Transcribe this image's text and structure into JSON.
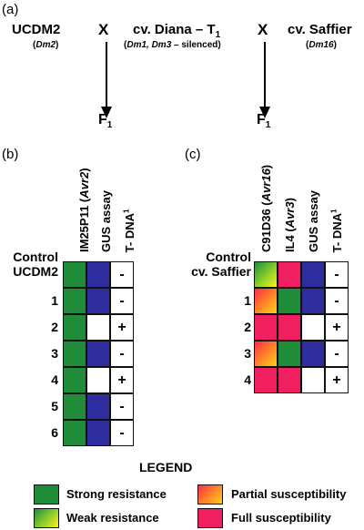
{
  "panel_a": {
    "label": "(a)",
    "parent1": {
      "name": "UCDM2",
      "sub": "Dm2"
    },
    "cross1": "X",
    "parent2": {
      "name": "cv. Diana – T",
      "name_sub": "1",
      "sub_italic": "Dm1, Dm3",
      "sub_rest": "– silenced"
    },
    "cross2": "X",
    "parent3": {
      "name": "cv. Saffier",
      "sub": "Dm16"
    },
    "f1_left": {
      "text": "F",
      "sub": "1"
    },
    "f1_right": {
      "text": "F",
      "sub": "1"
    }
  },
  "panel_b": {
    "label": "(b)",
    "columns": [
      {
        "main": "IM25P11 ",
        "ital": "Avr2",
        "tail": ""
      },
      {
        "main": "GUS assay",
        "ital": "",
        "tail": ""
      },
      {
        "main": "T- DNA",
        "ital": "",
        "tail": "1"
      }
    ],
    "rows": [
      {
        "label1": "Control",
        "label2": "UCDM2",
        "cells": [
          "green",
          "blue"
        ],
        "tdna": "-"
      },
      {
        "label1": "1",
        "cells": [
          "green",
          "blue"
        ],
        "tdna": "-"
      },
      {
        "label1": "2",
        "cells": [
          "green",
          "white"
        ],
        "tdna": "+"
      },
      {
        "label1": "3",
        "cells": [
          "green",
          "blue"
        ],
        "tdna": "-"
      },
      {
        "label1": "4",
        "cells": [
          "green",
          "white"
        ],
        "tdna": "+"
      },
      {
        "label1": "5",
        "cells": [
          "green",
          "blue"
        ],
        "tdna": "-"
      },
      {
        "label1": "6",
        "cells": [
          "green",
          "blue"
        ],
        "tdna": "-"
      }
    ]
  },
  "panel_c": {
    "label": "(c)",
    "columns": [
      {
        "main": "C91D36 ",
        "ital": "Avr16",
        "tail": ""
      },
      {
        "main": "IL4 ",
        "ital": "Avr3",
        "tail": ""
      },
      {
        "main": "GUS assay",
        "ital": "",
        "tail": ""
      },
      {
        "main": "T- DNA",
        "ital": "",
        "tail": "1"
      }
    ],
    "rows": [
      {
        "label1": "Control",
        "label2": "cv. Saffier",
        "cells": [
          "weak",
          "red",
          "blue"
        ],
        "tdna": "-"
      },
      {
        "label1": "1",
        "cells": [
          "partial",
          "green",
          "blue"
        ],
        "tdna": "-"
      },
      {
        "label1": "2",
        "cells": [
          "red",
          "red",
          "white"
        ],
        "tdna": "+"
      },
      {
        "label1": "3",
        "cells": [
          "partial",
          "green",
          "blue"
        ],
        "tdna": "-"
      },
      {
        "label1": "4",
        "cells": [
          "red",
          "red",
          "white"
        ],
        "tdna": "+"
      }
    ]
  },
  "legend": {
    "title": "LEGEND",
    "items": [
      {
        "key": "green",
        "text": "Strong resistance"
      },
      {
        "key": "partial",
        "text": "Partial susceptibility"
      },
      {
        "key": "weak",
        "text": "Weak resistance"
      },
      {
        "key": "red",
        "text": "Full susceptibility"
      }
    ]
  },
  "colors": {
    "strong_resistance": "#1f8c3a",
    "gus_positive": "#2f2c9e",
    "full_susceptibility": "#f02060"
  }
}
